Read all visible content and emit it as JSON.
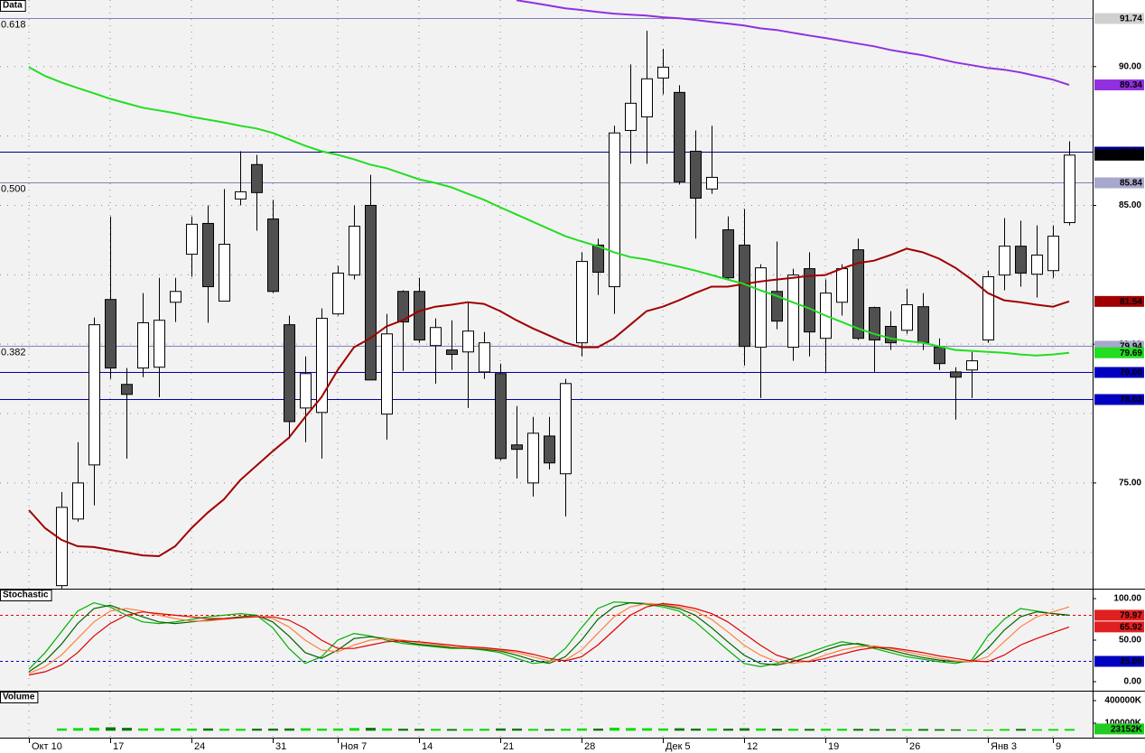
{
  "chart_data": [
    {
      "type": "candlestick",
      "title": "Data",
      "categories": [
        "Окт 10",
        null,
        null,
        null,
        null,
        "17",
        null,
        null,
        null,
        null,
        "24",
        null,
        null,
        null,
        null,
        "31",
        null,
        null,
        null,
        "Ноя 7",
        null,
        null,
        null,
        null,
        "14",
        null,
        null,
        null,
        null,
        "21",
        null,
        null,
        null,
        null,
        "28",
        null,
        null,
        null,
        null,
        "Дек 5",
        null,
        null,
        null,
        null,
        "12",
        null,
        null,
        null,
        null,
        "19",
        null,
        null,
        null,
        null,
        "26",
        null,
        null,
        null,
        null,
        "Янв 3",
        null,
        null,
        null,
        "9",
        null
      ],
      "open": [
        null,
        null,
        71.3,
        73.7,
        75.65,
        81.61,
        78.55,
        79.14,
        79.17,
        81.51,
        83.24,
        84.35,
        81.55,
        85.23,
        86.47,
        84.51,
        80.7,
        77.7,
        77.54,
        81.09,
        82.49,
        85.0,
        77.48,
        81.9,
        81.9,
        79.95,
        79.79,
        79.72,
        79.0,
        78.94,
        76.37,
        75.0,
        76.69,
        75.33,
        80.05,
        83.57,
        82.07,
        87.7,
        88.19,
        89.59,
        89.07,
        86.95,
        85.59,
        84.12,
        83.57,
        79.89,
        81.9,
        79.89,
        82.72,
        80.21,
        81.51,
        83.4,
        81.32,
        80.64,
        80.5,
        81.35,
        79.89,
        79.0,
        79.07,
        80.15,
        82.49,
        83.53,
        82.52,
        82.65,
        84.38
      ],
      "high": [
        null,
        null,
        74.67,
        76.47,
        80.96,
        84.6,
        79.14,
        81.84,
        82.39,
        82.39,
        84.6,
        85.0,
        85.59,
        86.95,
        86.82,
        85.2,
        81.03,
        79.56,
        81.29,
        82.82,
        85.0,
        86.1,
        81.09,
        81.94,
        82.39,
        80.93,
        80.86,
        81.51,
        80.44,
        79.3,
        77.77,
        77.38,
        77.38,
        78.75,
        83.31,
        83.8,
        87.87,
        90.08,
        91.29,
        90.64,
        89.33,
        87.7,
        87.87,
        84.6,
        84.87,
        82.88,
        83.7,
        82.72,
        83.31,
        82.33,
        82.88,
        83.8,
        81.35,
        81.19,
        82.0,
        81.84,
        80.21,
        79.17,
        79.72,
        82.65,
        84.54,
        84.45,
        84.28,
        84.28,
        87.31
      ],
      "low": [
        null,
        null,
        71.2,
        73.6,
        74.19,
        78.75,
        75.88,
        78.81,
        78.09,
        80.8,
        82.43,
        80.77,
        81.55,
        85.0,
        84.09,
        81.84,
        76.6,
        76.47,
        75.88,
        81.03,
        82.33,
        78.71,
        76.56,
        79.04,
        80.05,
        78.58,
        79.07,
        77.7,
        78.75,
        75.81,
        75.16,
        74.51,
        75.49,
        73.79,
        79.56,
        81.77,
        81.09,
        86.5,
        86.5,
        89.0,
        85.75,
        83.8,
        85.42,
        82.33,
        79.23,
        78.06,
        80.54,
        79.4,
        79.56,
        79.0,
        81.03,
        80.15,
        79.0,
        79.79,
        80.37,
        79.79,
        79.07,
        77.28,
        78.06,
        80.05,
        81.94,
        82.07,
        81.68,
        82.39,
        84.28
      ],
      "close": [
        null,
        null,
        74.12,
        75.0,
        80.7,
        79.14,
        78.19,
        80.77,
        80.86,
        81.9,
        84.32,
        82.07,
        83.6,
        85.49,
        85.46,
        81.9,
        77.21,
        78.94,
        80.93,
        82.56,
        84.25,
        78.71,
        80.37,
        80.8,
        80.15,
        80.6,
        79.63,
        80.47,
        80.05,
        75.88,
        76.21,
        76.79,
        75.72,
        78.58,
        82.98,
        82.59,
        87.61,
        88.68,
        89.56,
        89.98,
        85.85,
        85.26,
        86.01,
        82.39,
        79.92,
        82.75,
        80.83,
        82.49,
        80.44,
        81.84,
        82.72,
        80.21,
        80.15,
        80.05,
        81.42,
        80.05,
        79.3,
        78.81,
        79.4,
        82.43,
        83.53,
        82.56,
        83.21,
        83.89,
        86.81
      ],
      "up_color": "#ffffff",
      "down_color": "#505050",
      "close_tag_color": "#000000",
      "series": [
        {
          "color": "#a00000",
          "tag_color": "#a00000",
          "values": [
            74.02,
            73.37,
            72.95,
            72.72,
            72.69,
            72.59,
            72.49,
            72.39,
            72.36,
            72.72,
            73.37,
            73.93,
            74.41,
            75.1,
            75.62,
            76.14,
            76.63,
            77.38,
            78.09,
            79.07,
            79.89,
            80.21,
            80.64,
            80.86,
            81.19,
            81.35,
            81.42,
            81.51,
            81.45,
            81.19,
            80.86,
            80.57,
            80.31,
            80.05,
            79.89,
            79.89,
            80.21,
            80.7,
            81.19,
            81.35,
            81.58,
            81.84,
            82.07,
            82.07,
            82.17,
            82.26,
            82.33,
            82.39,
            82.46,
            82.49,
            82.72,
            82.92,
            83.01,
            83.21,
            83.44,
            83.31,
            83.08,
            82.75,
            82.33,
            81.84,
            81.58,
            81.51,
            81.42,
            81.35,
            81.54
          ]
        },
        {
          "color": "#22dd22",
          "tag_color": "#22dd22",
          "values": [
            89.98,
            89.66,
            89.43,
            89.23,
            89.04,
            88.84,
            88.68,
            88.52,
            88.42,
            88.32,
            88.19,
            88.09,
            87.99,
            87.87,
            87.77,
            87.61,
            87.38,
            87.15,
            86.95,
            86.82,
            86.66,
            86.47,
            86.34,
            86.14,
            85.94,
            85.81,
            85.65,
            85.42,
            85.2,
            84.93,
            84.67,
            84.41,
            84.15,
            83.89,
            83.7,
            83.53,
            83.31,
            83.14,
            83.05,
            82.92,
            82.79,
            82.65,
            82.49,
            82.33,
            82.17,
            81.94,
            81.74,
            81.51,
            81.29,
            81.03,
            80.8,
            80.57,
            80.37,
            80.21,
            80.11,
            80.05,
            79.92,
            79.79,
            79.76,
            79.72,
            79.69,
            79.63,
            79.59,
            79.63,
            79.69
          ]
        },
        {
          "color": "#9030e0",
          "tag_color": "#9030e0",
          "values": [
            null,
            null,
            null,
            null,
            null,
            null,
            null,
            null,
            null,
            null,
            null,
            null,
            null,
            null,
            null,
            null,
            null,
            null,
            null,
            null,
            null,
            null,
            null,
            null,
            null,
            null,
            null,
            null,
            null,
            null,
            92.39,
            92.3,
            92.2,
            92.1,
            92.04,
            91.97,
            91.91,
            91.87,
            91.84,
            91.78,
            91.74,
            91.68,
            91.61,
            91.55,
            91.48,
            91.38,
            91.32,
            91.22,
            91.12,
            91.03,
            90.93,
            90.83,
            90.73,
            90.6,
            90.5,
            90.41,
            90.28,
            90.15,
            90.05,
            89.95,
            89.89,
            89.79,
            89.66,
            89.53,
            89.34
          ]
        }
      ],
      "levels": [
        {
          "value": 91.74,
          "label": "0.618",
          "color": "#8080c0",
          "tag_color": "#d0d0d0"
        },
        {
          "value": 86.95,
          "color": "#000080",
          "tag_color": "#000080"
        },
        {
          "value": 85.84,
          "label": "0.500",
          "color": "#8080c0",
          "tag_color": "#a8a8cc"
        },
        {
          "value": 79.94,
          "label": "0.382",
          "color": "#8080c0",
          "tag_color": "#a8a8cc"
        },
        {
          "value": 79,
          "tag": "79.00",
          "color": "#0000a0",
          "tag_color": "#0000c0"
        },
        {
          "value": 78.03,
          "color": "#0000a0",
          "tag_color": "#0000c0"
        }
      ],
      "ylim": [
        71.19,
        92.4
      ],
      "yticks": [
        {
          "value": 75,
          "label": "75.00"
        },
        {
          "value": 80,
          "label": "80.00"
        },
        {
          "value": 85,
          "label": "85.00"
        },
        {
          "value": 90,
          "label": "90.00"
        }
      ],
      "grid_y": [
        72.5,
        75,
        77.5,
        80,
        82.5,
        85,
        87.5,
        90
      ],
      "grid": true
    },
    {
      "type": "line",
      "title": "Stochastic",
      "series": [
        {
          "color": "#00b000",
          "tag_color": "#e02020",
          "values": [
            15,
            35,
            60,
            85,
            95,
            90,
            80,
            72,
            70,
            72,
            75,
            78,
            80,
            82,
            80,
            65,
            40,
            22,
            30,
            50,
            58,
            55,
            50,
            46,
            44,
            42,
            40,
            40,
            38,
            35,
            28,
            22,
            24,
            40,
            65,
            88,
            96,
            95,
            93,
            90,
            85,
            72,
            55,
            38,
            22,
            18,
            22,
            28,
            35,
            42,
            48,
            45,
            40,
            35,
            30,
            27,
            24,
            22,
            26,
            55,
            75,
            88,
            85,
            82,
            79.97
          ]
        },
        {
          "color": "#006400",
          "values": [
            12,
            25,
            45,
            70,
            88,
            92,
            85,
            78,
            72,
            70,
            72,
            74,
            76,
            78,
            80,
            72,
            55,
            35,
            28,
            38,
            52,
            54,
            52,
            48,
            45,
            43,
            41,
            40,
            39,
            37,
            32,
            26,
            22,
            30,
            50,
            75,
            90,
            95,
            94,
            92,
            88,
            80,
            65,
            48,
            32,
            22,
            20,
            24,
            30,
            38,
            44,
            46,
            42,
            38,
            33,
            29,
            26,
            24,
            24,
            40,
            62,
            78,
            84,
            82,
            80
          ]
        },
        {
          "color": "#ff8040",
          "values": [
            10,
            18,
            32,
            52,
            72,
            85,
            88,
            85,
            80,
            76,
            73,
            73,
            75,
            77,
            79,
            76,
            66,
            50,
            38,
            36,
            44,
            50,
            52,
            50,
            47,
            45,
            42,
            41,
            40,
            38,
            35,
            30,
            25,
            26,
            38,
            58,
            78,
            90,
            94,
            93,
            90,
            85,
            75,
            60,
            44,
            32,
            24,
            22,
            25,
            32,
            38,
            42,
            43,
            40,
            36,
            32,
            28,
            25,
            24,
            30,
            48,
            66,
            78,
            84,
            90
          ]
        },
        {
          "color": "#e00000",
          "tag_color": "#e02020",
          "values": [
            8,
            12,
            20,
            35,
            55,
            70,
            80,
            84,
            82,
            80,
            78,
            76,
            76,
            77,
            78,
            78,
            74,
            64,
            50,
            40,
            40,
            44,
            48,
            49,
            48,
            46,
            44,
            42,
            41,
            39,
            37,
            33,
            28,
            25,
            30,
            44,
            62,
            80,
            90,
            94,
            92,
            88,
            82,
            72,
            58,
            44,
            32,
            26,
            24,
            28,
            33,
            38,
            41,
            41,
            38,
            35,
            31,
            28,
            25,
            24,
            32,
            44,
            52,
            59,
            65.92
          ]
        }
      ],
      "levels": [
        {
          "value": 80,
          "color": "#e00000"
        },
        {
          "value": 25,
          "tag": "25.00",
          "color": "#0000c0",
          "tag_color": "#0000c0"
        }
      ],
      "ylim": [
        -10.87,
        110.87
      ],
      "yticks": [
        {
          "value": 100,
          "label": "100.00"
        },
        {
          "value": 50,
          "label": "50.00"
        },
        {
          "value": 0,
          "label": "0.00"
        }
      ]
    },
    {
      "type": "bar",
      "title": "Volume",
      "values": [
        null,
        null,
        30000,
        35000,
        40000,
        45000,
        38000,
        30000,
        32000,
        30000,
        28000,
        30000,
        26000,
        25000,
        27000,
        28000,
        30000,
        32000,
        28000,
        30000,
        35000,
        38000,
        30000,
        26000,
        25000,
        24000,
        22000,
        23000,
        25000,
        30000,
        28000,
        24000,
        22000,
        25000,
        30000,
        28000,
        40000,
        35000,
        33000,
        30000,
        32000,
        28000,
        30000,
        27000,
        32000,
        30000,
        26000,
        25000,
        24000,
        26000,
        25000,
        24000,
        22000,
        21000,
        20000,
        22000,
        20000,
        18000,
        15000,
        16000,
        22000,
        24000,
        20000,
        22000,
        23152
      ],
      "last_label": "23152K",
      "up_color": "#00dd00",
      "down_color": "#007700",
      "tag_color": "#22cc22",
      "ylim": [
        -104400,
        519600
      ],
      "yticks": [
        {
          "value": 400000,
          "label": "400000K"
        },
        {
          "value": 100000,
          "label": "100000K"
        }
      ]
    }
  ]
}
